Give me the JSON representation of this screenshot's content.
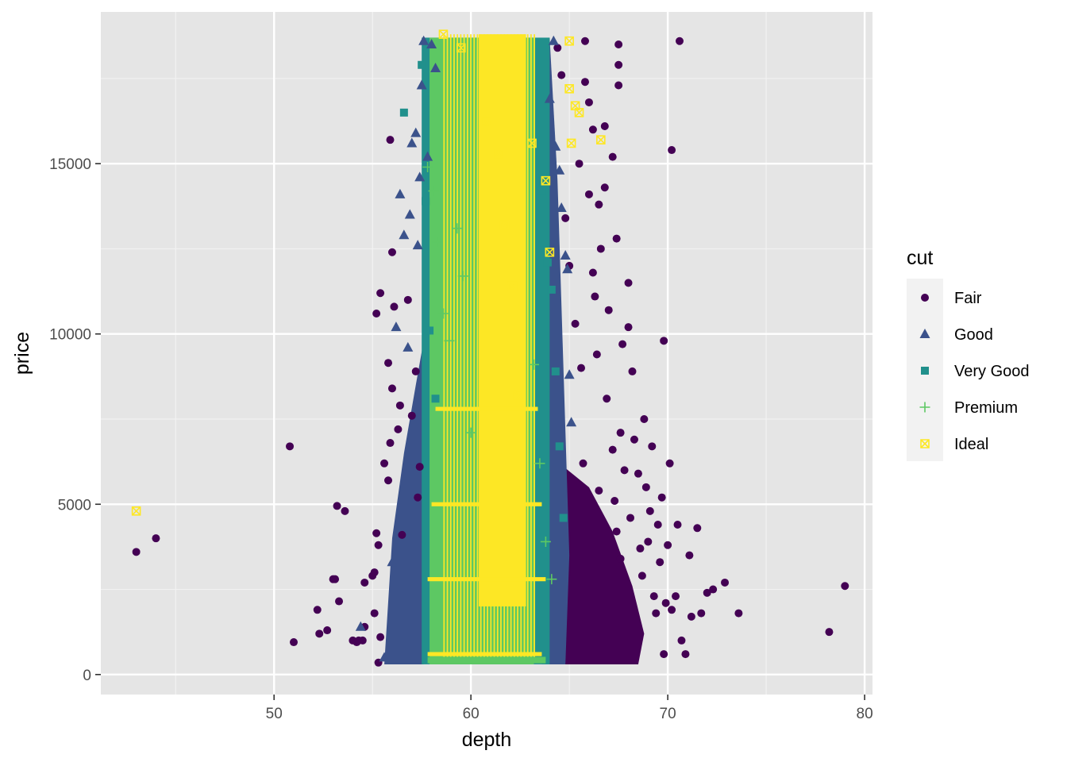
{
  "chart_data": {
    "type": "scatter",
    "title": "",
    "xlabel": "depth",
    "ylabel": "price",
    "xlim": [
      41.2,
      80.4
    ],
    "ylim": [
      -587,
      19456
    ],
    "x_ticks": [
      50,
      60,
      70,
      80
    ],
    "y_ticks": [
      0,
      5000,
      10000,
      15000
    ],
    "grid": true,
    "legend": {
      "title": "cut",
      "position": "right"
    },
    "series": [
      {
        "name": "Fair",
        "shape": "circle",
        "color": "#440154",
        "points": [
          [
            43.0,
            3600
          ],
          [
            44.0,
            4000
          ],
          [
            50.8,
            6700
          ],
          [
            51.0,
            950
          ],
          [
            52.2,
            1900
          ],
          [
            52.3,
            1200
          ],
          [
            52.7,
            1300
          ],
          [
            53.0,
            2800
          ],
          [
            53.1,
            2800
          ],
          [
            53.2,
            4950
          ],
          [
            53.3,
            2150
          ],
          [
            53.6,
            4800
          ],
          [
            54.0,
            1000
          ],
          [
            54.2,
            950
          ],
          [
            54.3,
            1000
          ],
          [
            54.5,
            1000
          ],
          [
            54.6,
            2700
          ],
          [
            54.6,
            1400
          ],
          [
            55.0,
            2900
          ],
          [
            55.1,
            1800
          ],
          [
            55.1,
            3000
          ],
          [
            55.2,
            10600
          ],
          [
            55.2,
            4150
          ],
          [
            55.3,
            3800
          ],
          [
            55.3,
            350
          ],
          [
            55.4,
            11200
          ],
          [
            55.4,
            1100
          ],
          [
            55.6,
            6200
          ],
          [
            55.8,
            5700
          ],
          [
            55.8,
            9150
          ],
          [
            55.9,
            15700
          ],
          [
            55.9,
            6800
          ],
          [
            56.0,
            12400
          ],
          [
            56.0,
            8400
          ],
          [
            56.1,
            10800
          ],
          [
            56.3,
            7200
          ],
          [
            56.4,
            7900
          ],
          [
            56.5,
            4100
          ],
          [
            56.8,
            11000
          ],
          [
            57.0,
            7600
          ],
          [
            57.2,
            8900
          ],
          [
            57.3,
            5200
          ],
          [
            57.4,
            6100
          ],
          [
            64.4,
            18400
          ],
          [
            64.6,
            17600
          ],
          [
            64.8,
            13400
          ],
          [
            65.0,
            12000
          ],
          [
            65.3,
            10300
          ],
          [
            65.5,
            15000
          ],
          [
            65.6,
            9000
          ],
          [
            65.7,
            6200
          ],
          [
            65.8,
            18600
          ],
          [
            65.8,
            17400
          ],
          [
            66.0,
            16800
          ],
          [
            66.0,
            14100
          ],
          [
            66.2,
            16000
          ],
          [
            66.2,
            11800
          ],
          [
            66.3,
            11100
          ],
          [
            66.4,
            9400
          ],
          [
            66.5,
            13800
          ],
          [
            66.5,
            5400
          ],
          [
            66.6,
            12500
          ],
          [
            66.8,
            16100
          ],
          [
            66.8,
            14300
          ],
          [
            66.9,
            8100
          ],
          [
            67.0,
            10700
          ],
          [
            67.2,
            15200
          ],
          [
            67.2,
            6600
          ],
          [
            67.3,
            5100
          ],
          [
            67.4,
            12800
          ],
          [
            67.4,
            4200
          ],
          [
            67.5,
            18500
          ],
          [
            67.5,
            17900
          ],
          [
            67.5,
            17300
          ],
          [
            67.6,
            3400
          ],
          [
            67.6,
            7100
          ],
          [
            67.7,
            9700
          ],
          [
            67.8,
            6000
          ],
          [
            68.0,
            10200
          ],
          [
            68.0,
            11500
          ],
          [
            68.1,
            4600
          ],
          [
            68.2,
            8900
          ],
          [
            68.3,
            6900
          ],
          [
            68.5,
            5900
          ],
          [
            68.6,
            3700
          ],
          [
            68.7,
            2900
          ],
          [
            68.8,
            7500
          ],
          [
            68.9,
            5500
          ],
          [
            69.0,
            3900
          ],
          [
            69.1,
            4800
          ],
          [
            69.2,
            6700
          ],
          [
            69.3,
            2300
          ],
          [
            69.4,
            1800
          ],
          [
            69.5,
            4400
          ],
          [
            69.6,
            3300
          ],
          [
            69.7,
            5200
          ],
          [
            69.8,
            9800
          ],
          [
            69.8,
            600
          ],
          [
            69.9,
            2100
          ],
          [
            70.0,
            3800
          ],
          [
            70.1,
            6200
          ],
          [
            70.2,
            15400
          ],
          [
            70.2,
            1900
          ],
          [
            70.4,
            2300
          ],
          [
            70.5,
            4400
          ],
          [
            70.6,
            18600
          ],
          [
            70.7,
            1000
          ],
          [
            70.9,
            600
          ],
          [
            71.1,
            3500
          ],
          [
            71.2,
            1700
          ],
          [
            71.5,
            4300
          ],
          [
            71.7,
            1800
          ],
          [
            72.0,
            2400
          ],
          [
            72.3,
            2500
          ],
          [
            72.9,
            2700
          ],
          [
            73.6,
            1800
          ],
          [
            78.2,
            1250
          ],
          [
            79.0,
            2600
          ]
        ]
      },
      {
        "name": "Good",
        "shape": "triangle",
        "color": "#3b528b",
        "points": [
          [
            54.4,
            1400
          ],
          [
            55.6,
            500
          ],
          [
            56.0,
            3300
          ],
          [
            56.2,
            10200
          ],
          [
            56.4,
            14100
          ],
          [
            56.6,
            12900
          ],
          [
            56.8,
            9600
          ],
          [
            56.9,
            13500
          ],
          [
            57.0,
            15600
          ],
          [
            57.2,
            15900
          ],
          [
            57.3,
            12600
          ],
          [
            57.4,
            14600
          ],
          [
            57.5,
            17300
          ],
          [
            57.6,
            18600
          ],
          [
            57.8,
            15200
          ],
          [
            58.0,
            18500
          ],
          [
            58.2,
            17800
          ],
          [
            64.0,
            16900
          ],
          [
            64.2,
            18600
          ],
          [
            64.3,
            15500
          ],
          [
            64.5,
            14800
          ],
          [
            64.6,
            13700
          ],
          [
            64.8,
            12300
          ],
          [
            64.9,
            11900
          ],
          [
            65.0,
            8800
          ],
          [
            65.1,
            7400
          ]
        ]
      },
      {
        "name": "Very Good",
        "shape": "square",
        "color": "#21908c",
        "points": [
          [
            56.6,
            16500
          ],
          [
            57.5,
            17900
          ],
          [
            57.7,
            13900
          ],
          [
            57.9,
            10100
          ],
          [
            58.2,
            8100
          ],
          [
            63.6,
            14200
          ],
          [
            63.9,
            12100
          ],
          [
            64.1,
            11300
          ],
          [
            64.3,
            8900
          ],
          [
            64.5,
            6700
          ],
          [
            64.7,
            4600
          ]
        ]
      },
      {
        "name": "Premium",
        "shape": "plus",
        "color": "#5dc863",
        "points": [
          [
            57.8,
            14900
          ],
          [
            58.1,
            14200
          ],
          [
            58.3,
            12700
          ],
          [
            58.6,
            10600
          ],
          [
            58.9,
            9800
          ],
          [
            59.3,
            13100
          ],
          [
            59.6,
            11700
          ],
          [
            60.0,
            7100
          ],
          [
            63.2,
            9100
          ],
          [
            63.5,
            6200
          ],
          [
            63.8,
            3900
          ],
          [
            64.1,
            2800
          ]
        ]
      },
      {
        "name": "Ideal",
        "shape": "square-x",
        "color": "#fde725",
        "points": [
          [
            43.0,
            4800
          ],
          [
            58.6,
            18800
          ],
          [
            59.5,
            18400
          ],
          [
            60.8,
            16200
          ],
          [
            61.4,
            15300
          ],
          [
            61.7,
            13200
          ],
          [
            62.1,
            11400
          ],
          [
            62.4,
            8200
          ],
          [
            63.1,
            15600
          ],
          [
            63.8,
            14500
          ],
          [
            64.0,
            12400
          ],
          [
            65.0,
            18600
          ],
          [
            65.0,
            17200
          ],
          [
            65.1,
            15600
          ],
          [
            65.3,
            16700
          ],
          [
            65.5,
            16500
          ],
          [
            66.6,
            15700
          ]
        ]
      }
    ]
  }
}
